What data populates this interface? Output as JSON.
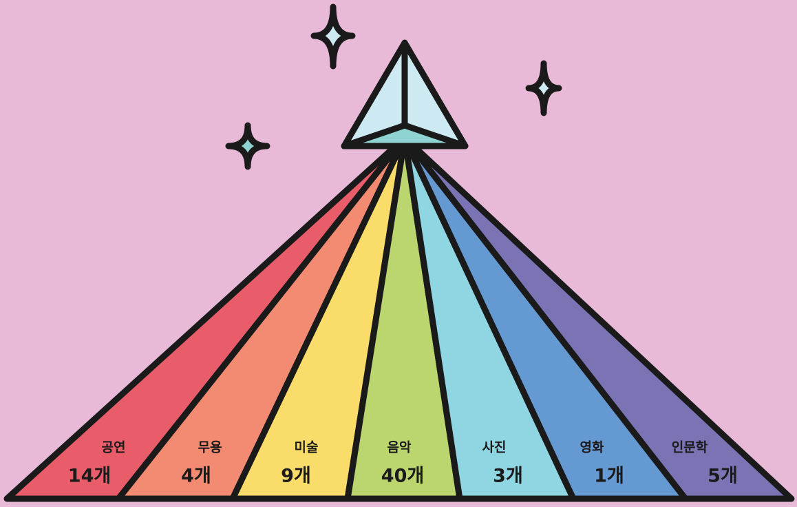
{
  "items": [
    {
      "label": "공연",
      "count": "14개",
      "color": "#e95d6b"
    },
    {
      "label": "무용",
      "count": "4개",
      "color": "#f38a72"
    },
    {
      "label": "미술",
      "count": "9개",
      "color": "#f9dc6a"
    },
    {
      "label": "음악",
      "count": "40개",
      "color": "#bcd66f"
    },
    {
      "label": "사진",
      "count": "3개",
      "color": "#90d5e2"
    },
    {
      "label": "영화",
      "count": "1개",
      "color": "#6499d2"
    },
    {
      "label": "인문학",
      "count": "5개",
      "color": "#7a74b5"
    }
  ]
}
